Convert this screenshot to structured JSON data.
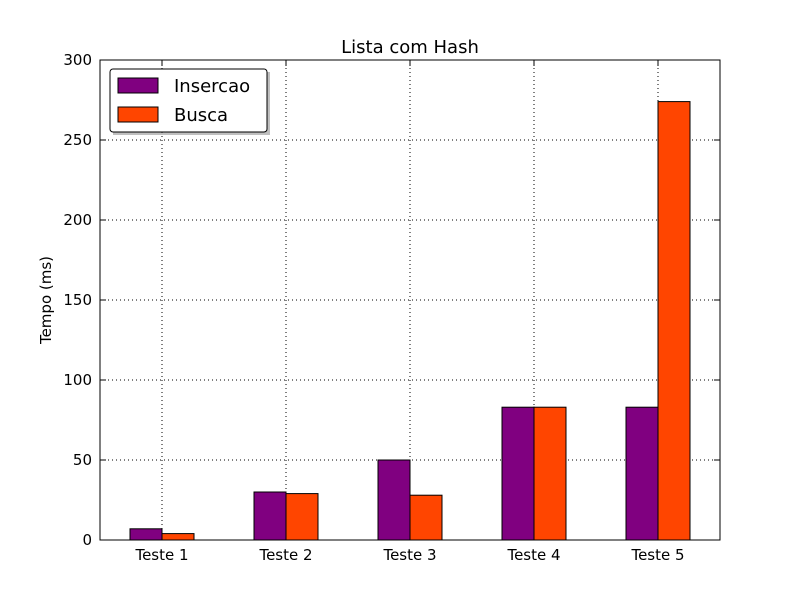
{
  "chart_data": {
    "type": "bar",
    "title": "Lista com Hash",
    "xlabel": "",
    "ylabel": "Tempo (ms)",
    "categories": [
      "Teste 1",
      "Teste 2",
      "Teste 3",
      "Teste 4",
      "Teste 5"
    ],
    "series": [
      {
        "name": "Insercao",
        "color": "#800080",
        "values": [
          7,
          30,
          50,
          83,
          83
        ]
      },
      {
        "name": "Busca",
        "color": "#ff4500",
        "values": [
          4,
          29,
          28,
          83,
          274
        ]
      }
    ],
    "ylim": [
      0,
      300
    ],
    "yticks": [
      0,
      50,
      100,
      150,
      200,
      250,
      300
    ],
    "grid": true,
    "legend_position": "top-left"
  }
}
